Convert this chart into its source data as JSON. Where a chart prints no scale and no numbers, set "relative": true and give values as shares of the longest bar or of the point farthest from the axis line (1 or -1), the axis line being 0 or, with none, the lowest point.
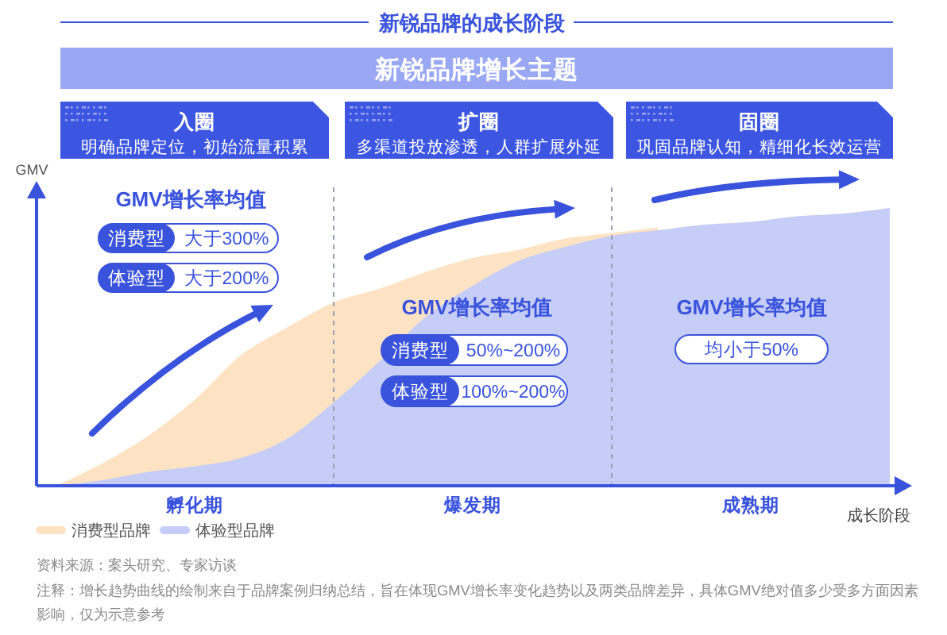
{
  "chart_data": {
    "type": "area",
    "title": "新锐品牌的成长阶段",
    "subtitle": "新锐品牌增长主题",
    "xlabel": "成长阶段",
    "ylabel": "GMV",
    "relative": true,
    "categories": [
      null,
      null,
      null,
      "孵化期",
      null,
      null,
      null,
      null,
      null,
      "爆发期",
      null,
      null,
      null,
      null,
      null,
      "成熟期",
      null,
      null,
      null
    ],
    "series": [
      {
        "name": "消费型品牌",
        "color": "#fde3c4",
        "values": [
          0,
          0.08,
          0.18,
          0.31,
          0.47,
          0.57,
          0.66,
          0.71,
          0.77,
          0.82,
          0.85,
          0.89,
          0.91,
          0.93,
          null,
          null,
          null,
          null,
          null
        ]
      },
      {
        "name": "体验型品牌",
        "color": "#c6cdf6",
        "values": [
          0,
          0.02,
          0.05,
          0.07,
          0.1,
          0.17,
          0.3,
          0.45,
          0.61,
          0.72,
          0.81,
          0.86,
          0.9,
          0.92,
          0.94,
          0.95,
          0.97,
          0.98,
          1
        ]
      }
    ],
    "legend": "bottom left",
    "annotations": [
      "入圈",
      "明确品牌定位，初始流量积累",
      "扩圈",
      "多渠道投放渗透，人群扩展外延",
      "固圈",
      "巩固品牌认知，精细化长效运营",
      "GMV增长率均值",
      "消费型",
      "大于300%",
      "体验型",
      "大于200%",
      "GMV增长率均值",
      "消费型",
      "50%~200%",
      "体验型",
      "100%~200%",
      "GMV增长率均值",
      "均小于50%",
      "资料来源：案头研究、专家访谈",
      "注释：增长趋势曲线的绘制来自于品牌案例归纳总结，旨在体现GMV增长率变化趋势以及两类品牌差异，具体GMV绝对值多少受多方面因素影响，仅为示意参考"
    ]
  }
}
